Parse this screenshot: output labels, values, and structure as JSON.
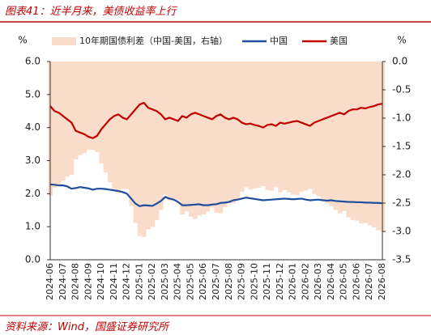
{
  "chart_data": {
    "type": "line",
    "title": "图表41：近半月来，美债收益率上行",
    "source": "资料来源：Wind，国盛证券研究所",
    "ylabel": "%",
    "y2label": "%",
    "legend": "top",
    "categories": [
      "2024-06",
      null,
      null,
      "2024-07",
      null,
      null,
      "2024-08",
      null,
      null,
      "2024-09",
      null,
      null,
      "2024-10",
      null,
      null,
      "2024-11",
      null,
      null,
      "2024-12",
      null,
      null,
      "2025-01",
      null,
      null,
      "2025-02",
      null,
      null,
      "2025-03",
      null,
      null,
      "2025-04",
      null,
      null,
      "2025-05",
      null,
      null,
      "2025-06",
      null,
      null,
      "2025-07",
      null,
      null,
      "2025-08",
      null,
      null,
      "2025-09",
      null,
      null,
      "2025-10",
      null,
      null,
      "2025-11",
      null,
      null,
      "2025-12",
      null,
      null,
      "2026-01",
      null,
      null,
      "2026-02",
      null,
      null,
      "2026-03",
      null,
      null,
      "2026-04",
      null,
      null,
      "2026-05",
      null,
      null,
      "2026-06",
      null,
      null,
      "2026-07",
      null,
      null,
      "2026-08"
    ],
    "series": [
      {
        "name": "10年期国债利差（中国-美国，右轴）",
        "type": "area",
        "axis": "y2",
        "color": "#f9dcc9",
        "values": [
          -2.37,
          -2.23,
          -2.2,
          -2.1,
          -2.03,
          -2.0,
          -1.73,
          -1.65,
          -1.62,
          -1.56,
          -1.56,
          -1.6,
          -1.8,
          -1.96,
          -2.13,
          -2.25,
          -2.32,
          -2.25,
          -2.25,
          -2.55,
          -2.85,
          -3.08,
          -3.1,
          -2.96,
          -2.92,
          -2.8,
          -2.62,
          -2.35,
          -2.45,
          -2.43,
          -2.45,
          -2.7,
          -2.65,
          -2.74,
          -2.78,
          -2.72,
          -2.7,
          -2.65,
          -2.58,
          -2.67,
          -2.68,
          -2.57,
          -2.5,
          -2.5,
          -2.43,
          -2.3,
          -2.22,
          -2.26,
          -2.24,
          -2.23,
          -2.2,
          -2.27,
          -2.28,
          -2.22,
          -2.31,
          -2.27,
          -2.31,
          -2.35,
          -2.36,
          -2.3,
          -2.28,
          -2.25,
          -2.34,
          -2.38,
          -2.45,
          -2.51,
          -2.55,
          -2.62,
          -2.68,
          -2.64,
          -2.75,
          -2.8,
          -2.81,
          -2.86,
          -2.85,
          -2.89,
          -2.93,
          -2.98,
          -3.01
        ]
      },
      {
        "name": "中国",
        "type": "line",
        "color": "#1f4e9c",
        "values": [
          2.28,
          2.27,
          2.25,
          2.25,
          2.22,
          2.15,
          2.17,
          2.2,
          2.18,
          2.16,
          2.12,
          2.15,
          2.15,
          2.14,
          2.12,
          2.1,
          2.08,
          2.05,
          2.0,
          1.85,
          1.7,
          1.62,
          1.65,
          1.64,
          1.63,
          1.7,
          1.78,
          1.9,
          1.85,
          1.82,
          1.75,
          1.65,
          1.65,
          1.66,
          1.67,
          1.68,
          1.65,
          1.65,
          1.67,
          1.68,
          1.72,
          1.73,
          1.75,
          1.8,
          1.82,
          1.85,
          1.88,
          1.86,
          1.84,
          1.82,
          1.8,
          1.81,
          1.82,
          1.83,
          1.84,
          1.85,
          1.84,
          1.83,
          1.84,
          1.85,
          1.82,
          1.8,
          1.81,
          1.82,
          1.8,
          1.79,
          1.8,
          1.78,
          1.77,
          1.76,
          1.75,
          1.75,
          1.74,
          1.74,
          1.73,
          1.73,
          1.72,
          1.72,
          1.71
        ]
      },
      {
        "name": "美国",
        "type": "line",
        "color": "#c00000",
        "values": [
          4.65,
          4.5,
          4.45,
          4.35,
          4.25,
          4.15,
          3.9,
          3.85,
          3.8,
          3.72,
          3.68,
          3.75,
          3.95,
          4.1,
          4.25,
          4.35,
          4.4,
          4.3,
          4.25,
          4.4,
          4.55,
          4.7,
          4.75,
          4.6,
          4.55,
          4.5,
          4.4,
          4.25,
          4.3,
          4.25,
          4.2,
          4.35,
          4.3,
          4.4,
          4.45,
          4.4,
          4.35,
          4.3,
          4.25,
          4.35,
          4.4,
          4.3,
          4.25,
          4.3,
          4.25,
          4.15,
          4.1,
          4.12,
          4.08,
          4.05,
          4.0,
          4.08,
          4.1,
          4.05,
          4.15,
          4.12,
          4.15,
          4.18,
          4.2,
          4.15,
          4.1,
          4.05,
          4.15,
          4.2,
          4.25,
          4.3,
          4.35,
          4.4,
          4.45,
          4.4,
          4.5,
          4.55,
          4.55,
          4.6,
          4.58,
          4.62,
          4.65,
          4.7,
          4.72
        ]
      }
    ],
    "ylim": [
      0,
      6
    ],
    "yticks": [
      {
        "value": 0,
        "label": "0.0"
      },
      {
        "value": 1,
        "label": "1.0"
      },
      {
        "value": 2,
        "label": "2.0"
      },
      {
        "value": 3,
        "label": "3.0"
      },
      {
        "value": 4,
        "label": "4.0"
      },
      {
        "value": 5,
        "label": "5.0"
      },
      {
        "value": 6,
        "label": "6.0"
      }
    ],
    "y2lim": [
      -3.5,
      0
    ],
    "y2ticks": [
      {
        "value": -3.5,
        "label": "-3.5"
      },
      {
        "value": -3,
        "label": "-3.0"
      },
      {
        "value": -2.5,
        "label": "-2.5"
      },
      {
        "value": -2,
        "label": "-2.0"
      },
      {
        "value": -1.5,
        "label": "-1.5"
      },
      {
        "value": -1,
        "label": "-1.0"
      },
      {
        "value": -0.5,
        "label": "-0.5"
      },
      {
        "value": 0,
        "label": "0.0"
      }
    ]
  }
}
